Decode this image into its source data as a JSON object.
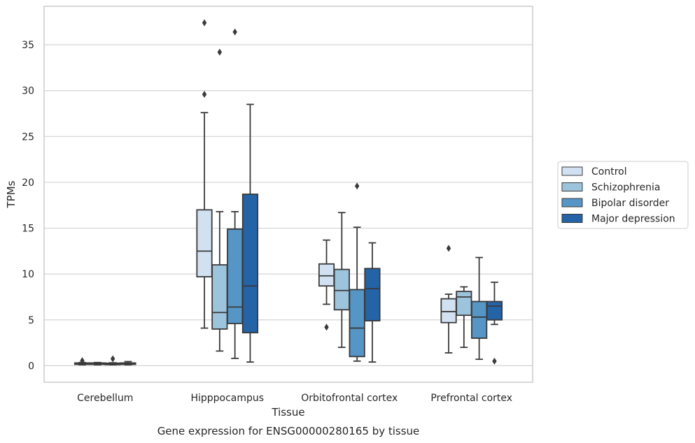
{
  "chart_data": {
    "type": "box",
    "title": "",
    "caption": "Gene expression for ENSG00000280165 by tissue",
    "xlabel": "Tissue",
    "ylabel": "TPMs",
    "ylim": [
      -1.8,
      39.2
    ],
    "yticks": [
      0,
      5,
      10,
      15,
      20,
      25,
      30,
      35
    ],
    "grid": "horizontal",
    "legend_position": "right",
    "categories": [
      "Cerebellum",
      "Hipppocampus",
      "Orbitofrontal cortex",
      "Prefrontal cortex"
    ],
    "series": [
      {
        "name": "Control",
        "color": "#d1e1f1",
        "boxes": [
          {
            "whislo": 0.1,
            "q1": 0.15,
            "med": 0.2,
            "q3": 0.3,
            "whishi": 0.35,
            "fliers": [
              0.55
            ]
          },
          {
            "whislo": 4.1,
            "q1": 9.7,
            "med": 12.5,
            "q3": 17.0,
            "whishi": 27.6,
            "fliers": [
              29.6,
              37.4
            ]
          },
          {
            "whislo": 6.7,
            "q1": 8.7,
            "med": 9.8,
            "q3": 11.1,
            "whishi": 13.7,
            "fliers": [
              4.2
            ]
          },
          {
            "whislo": 1.4,
            "q1": 4.7,
            "med": 5.9,
            "q3": 7.3,
            "whishi": 7.8,
            "fliers": [
              12.8
            ]
          }
        ]
      },
      {
        "name": "Schizophrenia",
        "color": "#9cc4dd",
        "boxes": [
          {
            "whislo": 0.1,
            "q1": 0.15,
            "med": 0.22,
            "q3": 0.3,
            "whishi": 0.35,
            "fliers": []
          },
          {
            "whislo": 1.6,
            "q1": 4.0,
            "med": 5.8,
            "q3": 11.0,
            "whishi": 16.8,
            "fliers": [
              34.2
            ]
          },
          {
            "whislo": 2.0,
            "q1": 6.1,
            "med": 8.2,
            "q3": 10.5,
            "whishi": 16.7,
            "fliers": []
          },
          {
            "whislo": 2.0,
            "q1": 5.5,
            "med": 7.5,
            "q3": 8.1,
            "whishi": 8.6,
            "fliers": []
          }
        ]
      },
      {
        "name": "Bipolar disorder",
        "color": "#5596c7",
        "boxes": [
          {
            "whislo": 0.1,
            "q1": 0.12,
            "med": 0.2,
            "q3": 0.28,
            "whishi": 0.32,
            "fliers": [
              0.75
            ]
          },
          {
            "whislo": 0.8,
            "q1": 4.6,
            "med": 6.4,
            "q3": 14.9,
            "whishi": 16.8,
            "fliers": [
              36.4
            ]
          },
          {
            "whislo": 0.5,
            "q1": 1.0,
            "med": 4.1,
            "q3": 8.3,
            "whishi": 15.1,
            "fliers": [
              19.6
            ]
          },
          {
            "whislo": 0.7,
            "q1": 3.0,
            "med": 5.3,
            "q3": 7.0,
            "whishi": 11.8,
            "fliers": []
          }
        ]
      },
      {
        "name": "Major depression",
        "color": "#2463a6",
        "boxes": [
          {
            "whislo": 0.1,
            "q1": 0.15,
            "med": 0.2,
            "q3": 0.3,
            "whishi": 0.45,
            "fliers": []
          },
          {
            "whislo": 0.4,
            "q1": 3.6,
            "med": 8.7,
            "q3": 18.7,
            "whishi": 28.5,
            "fliers": []
          },
          {
            "whislo": 0.4,
            "q1": 4.9,
            "med": 8.4,
            "q3": 10.6,
            "whishi": 13.4,
            "fliers": []
          },
          {
            "whislo": 4.5,
            "q1": 5.0,
            "med": 6.5,
            "q3": 7.0,
            "whishi": 9.1,
            "fliers": [
              0.5
            ]
          }
        ]
      }
    ]
  }
}
